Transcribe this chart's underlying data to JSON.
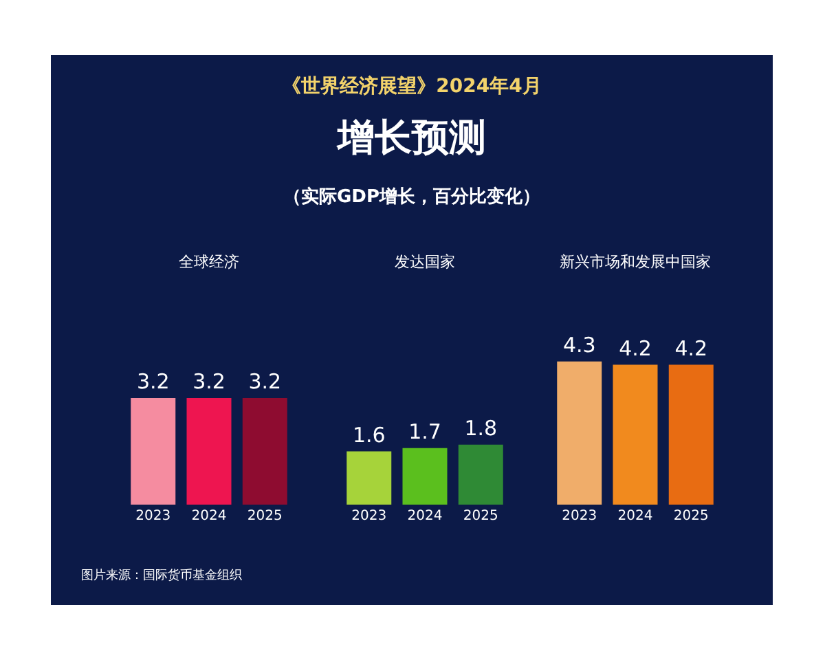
{
  "chart_data": [
    {
      "type": "other",
      "title": "增长预测",
      "subtitle": "（实际GDP增长，百分比变化）",
      "annotations": [
        "《世界经济展望》2024年4月",
        "图片来源：国际货币基金组织"
      ]
    },
    {
      "type": "bar",
      "title": "全球经济",
      "categories": [
        "2023",
        "2024",
        "2025"
      ],
      "values": [
        3.2,
        3.2,
        3.2
      ],
      "colors": [
        "#f58ca0",
        "#ee1550",
        "#8e0c30"
      ],
      "data_labels": true,
      "tick_labels": "x"
    },
    {
      "type": "bar",
      "title": "发达国家",
      "categories": [
        "2023",
        "2024",
        "2025"
      ],
      "values": [
        1.6,
        1.7,
        1.8
      ],
      "colors": [
        "#a6d33a",
        "#5bbf1e",
        "#2f8a35"
      ],
      "data_labels": true,
      "tick_labels": "x"
    },
    {
      "type": "bar",
      "title": "新兴市场和发展中国家",
      "categories": [
        "2023",
        "2024",
        "2025"
      ],
      "values": [
        4.3,
        4.2,
        4.2
      ],
      "colors": [
        "#f0ad6a",
        "#f18a1e",
        "#e86c12"
      ],
      "data_labels": true,
      "tick_labels": "x"
    }
  ]
}
